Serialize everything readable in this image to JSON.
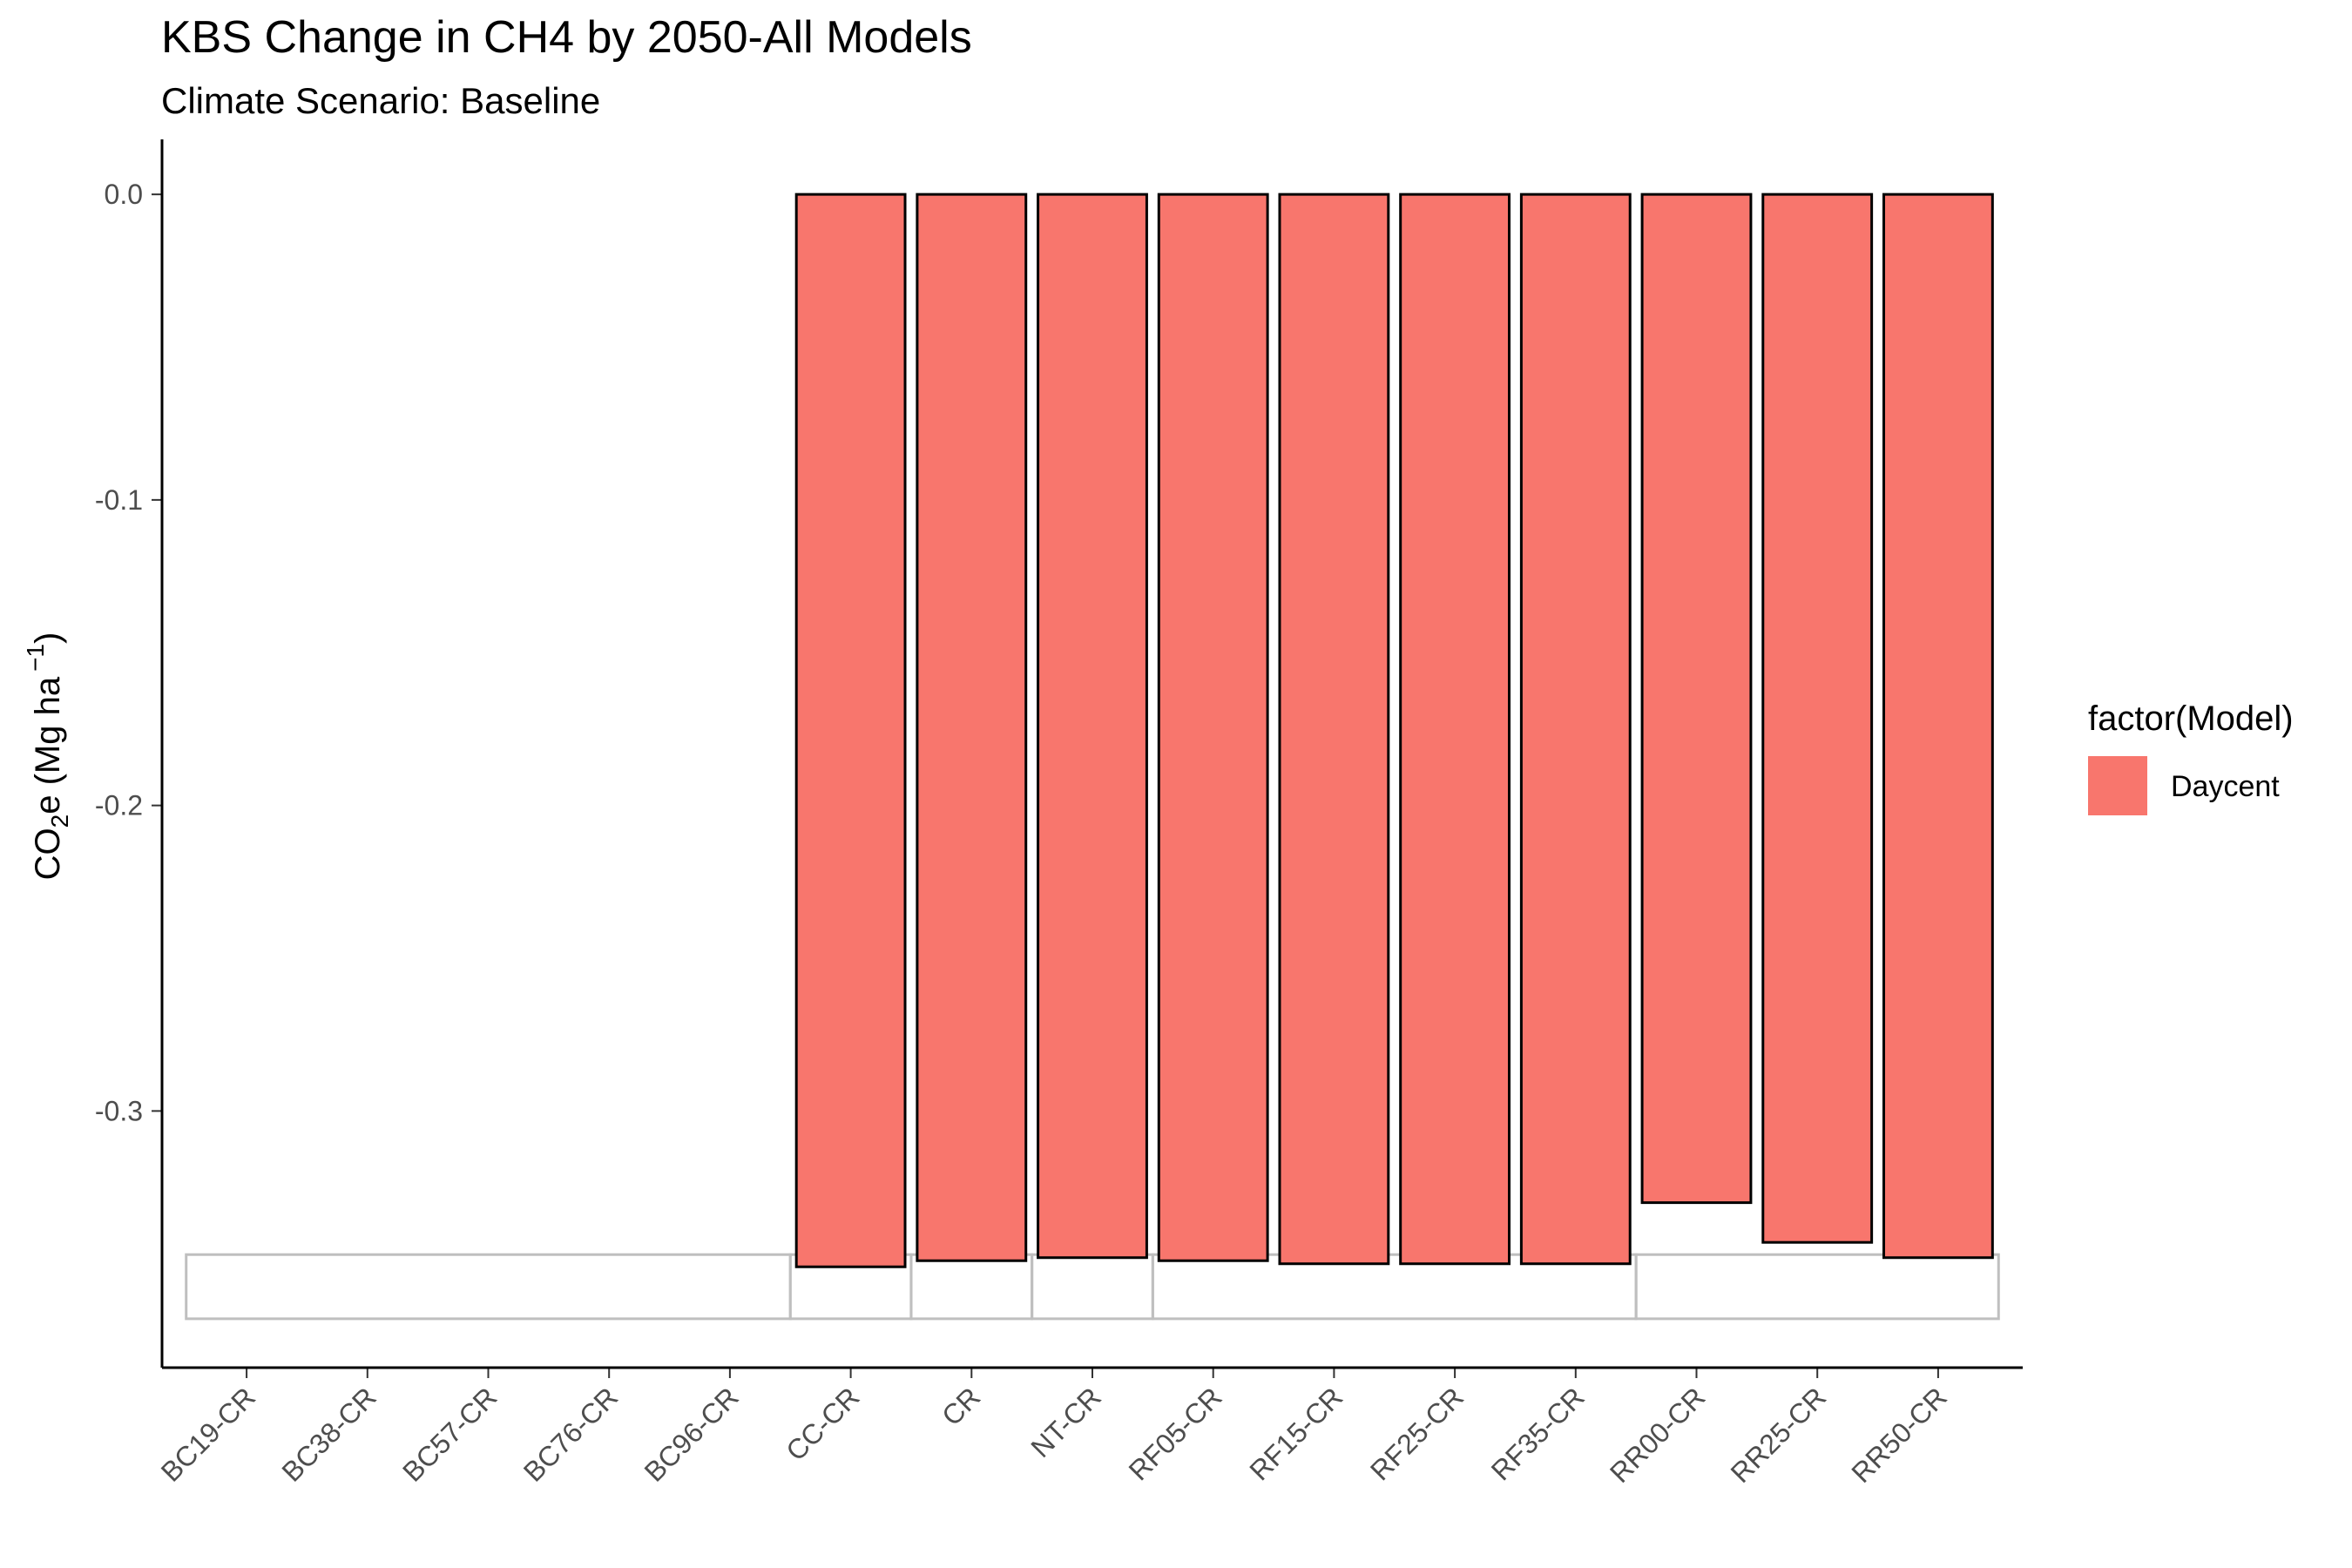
{
  "chart_data": {
    "type": "bar",
    "title": "KBS Change in CH4 by 2050-All Models",
    "subtitle": "Climate Scenario: Baseline",
    "ylabel": {
      "main": "CO",
      "sub": "2",
      "rest": "e (Mg ha",
      "sup": "−1",
      "close": ")"
    },
    "xlabel": "",
    "categories": [
      "BC19-CR",
      "BC38-CR",
      "BC57-CR",
      "BC76-CR",
      "BC96-CR",
      "CC-CR",
      "CR",
      "NT-CR",
      "RF05-CR",
      "RF15-CR",
      "RF25-CR",
      "RF35-CR",
      "RR00-CR",
      "RR25-CR",
      "RR50-CR"
    ],
    "series": [
      {
        "name": "Daycent",
        "color": "#F8766D",
        "values": [
          null,
          null,
          null,
          null,
          null,
          -0.351,
          -0.349,
          -0.348,
          -0.349,
          -0.35,
          -0.35,
          -0.35,
          -0.33,
          -0.343,
          -0.348
        ]
      }
    ],
    "yticks": [
      0.0,
      -0.1,
      -0.2,
      -0.3
    ],
    "ytick_labels": [
      "0.0",
      "-0.1",
      "-0.2",
      "-0.3"
    ],
    "ylim": [
      -0.384,
      0.018
    ],
    "legend": {
      "title": "factor(Model)",
      "entries": [
        "Daycent"
      ],
      "position": "right"
    },
    "grid": false,
    "overlay_boxes": [
      {
        "categories_span": [
          "BC19-CR",
          "BC96-CR"
        ],
        "y_top": -0.347,
        "y_bottom": -0.368,
        "color": "#bfbfbf"
      },
      {
        "categories_span": [
          "CC-CR",
          "CC-CR"
        ],
        "y_top": -0.347,
        "y_bottom": -0.368,
        "color": "#bfbfbf"
      },
      {
        "categories_span": [
          "CR",
          "CR"
        ],
        "y_top": -0.347,
        "y_bottom": -0.368,
        "color": "#bfbfbf"
      },
      {
        "categories_span": [
          "NT-CR",
          "NT-CR"
        ],
        "y_top": -0.347,
        "y_bottom": -0.368,
        "color": "#bfbfbf"
      },
      {
        "categories_span": [
          "RF05-CR",
          "RF35-CR"
        ],
        "y_top": -0.347,
        "y_bottom": -0.368,
        "color": "#bfbfbf"
      },
      {
        "categories_span": [
          "RR00-CR",
          "RR50-CR"
        ],
        "y_top": -0.347,
        "y_bottom": -0.368,
        "color": "#bfbfbf"
      }
    ]
  }
}
